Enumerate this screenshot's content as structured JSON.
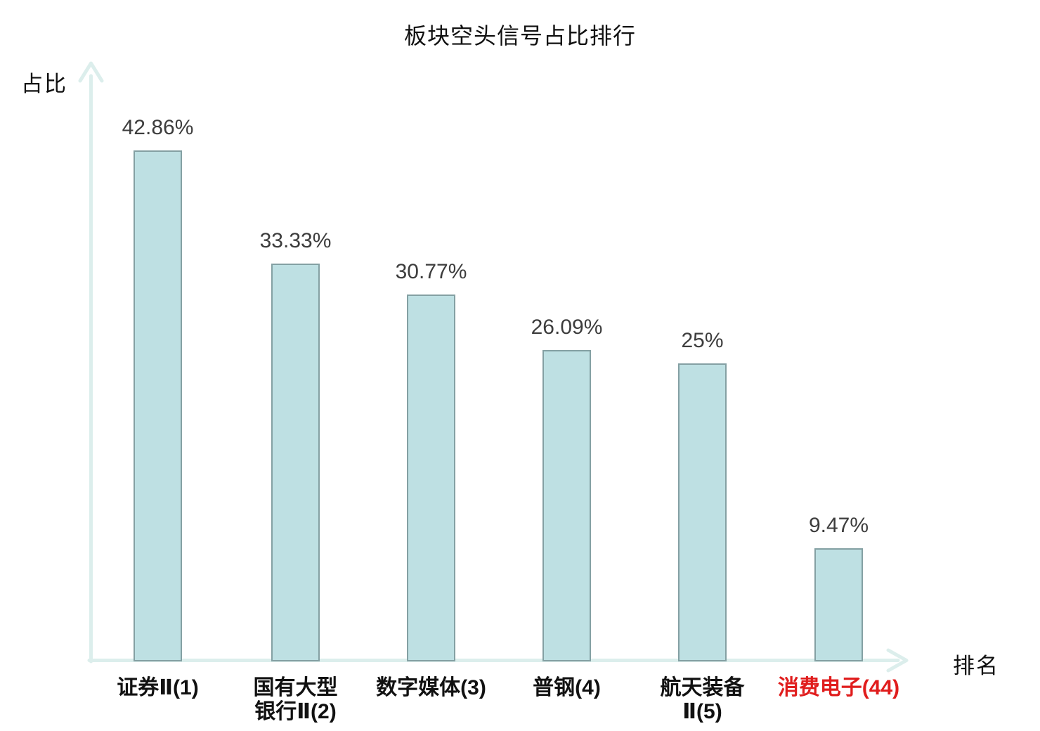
{
  "chart_data": {
    "type": "bar",
    "title": "板块空头信号占比排行",
    "ylabel": "占比",
    "xlabel": "排名",
    "categories": [
      {
        "label": "证券Ⅱ(1)",
        "lines": [
          "证券Ⅱ(1)"
        ],
        "rank": 1,
        "highlight": false
      },
      {
        "label": "国有大型银行Ⅱ(2)",
        "lines": [
          "国有大型",
          "银行Ⅱ(2)"
        ],
        "rank": 2,
        "highlight": false
      },
      {
        "label": "数字媒体(3)",
        "lines": [
          "数字媒体(3)"
        ],
        "rank": 3,
        "highlight": false
      },
      {
        "label": "普钢(4)",
        "lines": [
          "普钢(4)"
        ],
        "rank": 4,
        "highlight": false
      },
      {
        "label": "航天装备Ⅱ(5)",
        "lines": [
          "航天装备",
          "Ⅱ(5)"
        ],
        "rank": 5,
        "highlight": false
      },
      {
        "label": "消费电子(44)",
        "lines": [
          "消费电子(44)"
        ],
        "rank": 44,
        "highlight": true
      }
    ],
    "values": [
      42.86,
      33.33,
      30.77,
      26.09,
      25,
      9.47
    ],
    "value_labels": [
      "42.86%",
      "33.33%",
      "30.77%",
      "26.09%",
      "25%",
      "9.47%"
    ],
    "ylim": [
      0,
      50
    ],
    "grid": false,
    "legend": false,
    "axis_style": "arrow",
    "colors": {
      "axis": "#dceeec",
      "bar_fill": "#bee0e3",
      "bar_border": "#84a0a3",
      "value_label": "#3d3d3d",
      "category_label": "#111111",
      "highlight": "#e01d1d",
      "title": "#111111",
      "background": "#ffffff"
    }
  }
}
